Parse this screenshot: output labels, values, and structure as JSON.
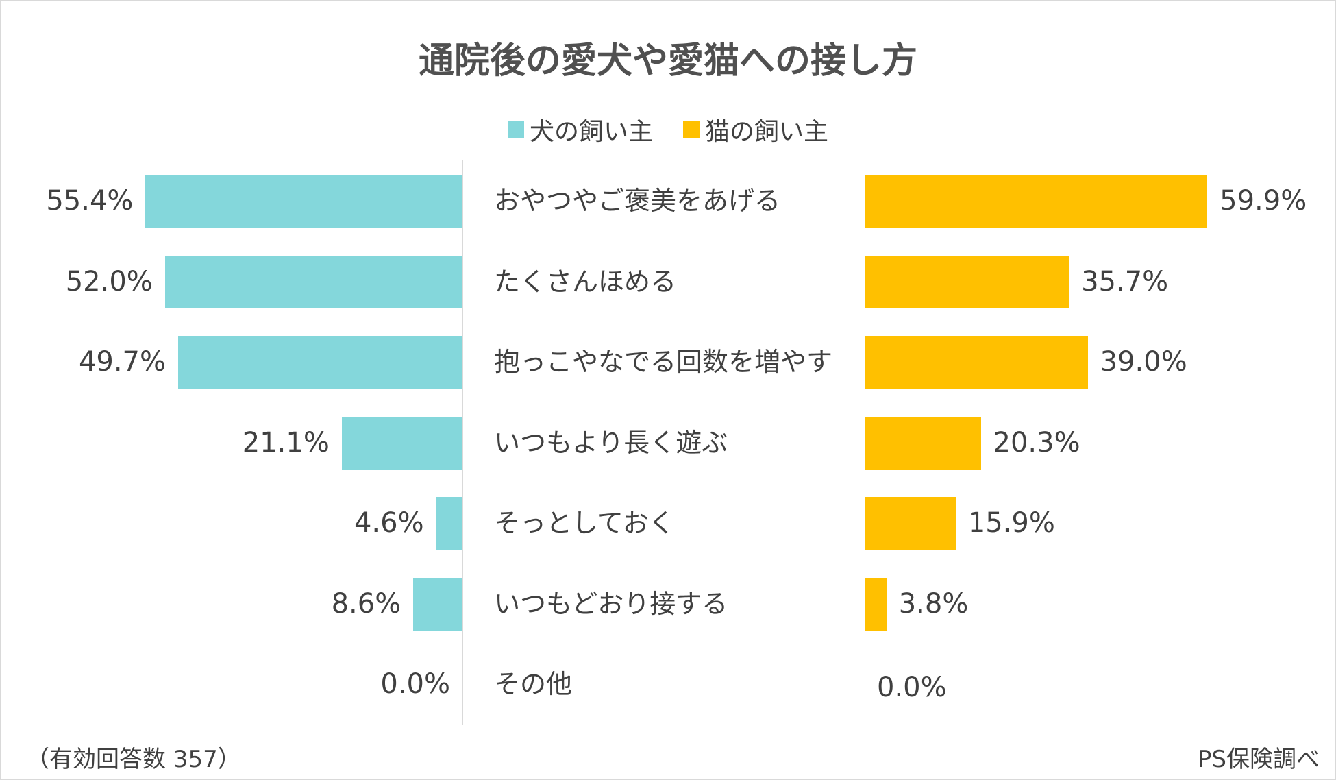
{
  "chart_data": {
    "type": "bar",
    "orientation": "horizontal-butterfly",
    "title": "通院後の愛犬や愛猫への接し方",
    "categories": [
      "おやつやご褒美をあげる",
      "たくさんほめる",
      "抱っこやなでる回数を増やす",
      "いつもより長く遊ぶ",
      "そっとしておく",
      "いつもどおり接する",
      "その他"
    ],
    "series": [
      {
        "name": "犬の飼い主",
        "color": "#84D7DB",
        "values": [
          55.4,
          52.0,
          49.7,
          21.1,
          4.6,
          8.6,
          0.0
        ],
        "labels": [
          "55.4%",
          "52.0%",
          "49.7%",
          "21.1%",
          "4.6%",
          "8.6%",
          "0.0%"
        ]
      },
      {
        "name": "猫の飼い主",
        "color": "#FFC000",
        "values": [
          59.9,
          35.7,
          39.0,
          20.3,
          15.9,
          3.8,
          0.0
        ],
        "labels": [
          "59.9%",
          "35.7%",
          "39.0%",
          "20.3%",
          "15.9%",
          "3.8%",
          "0.0%"
        ]
      }
    ],
    "legend_position": "top",
    "grid": false
  },
  "footer": {
    "left": "（有効回答数 357）",
    "right": "PS保険調べ"
  }
}
